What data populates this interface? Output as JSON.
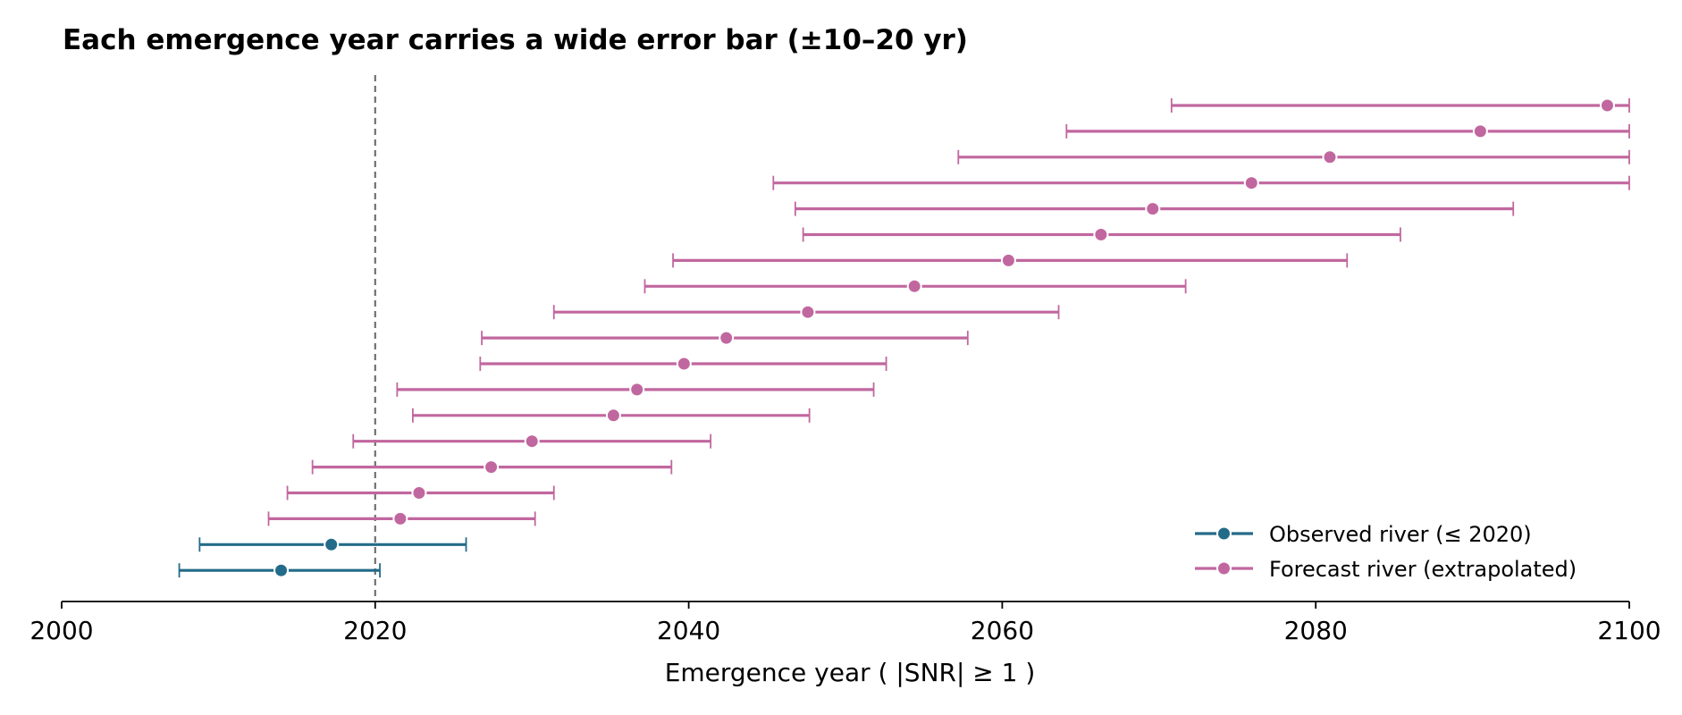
{
  "chart_data": {
    "type": "errorbar",
    "title": "Each emergence year carries a wide error bar (±10–20 yr)",
    "xlabel": "Emergence year  ( |SNR| ≥ 1 )",
    "ylabel": "",
    "xlim": [
      2000,
      2100
    ],
    "xticks": [
      2000,
      2020,
      2040,
      2060,
      2080,
      2100
    ],
    "xtick_labels": [
      "2000",
      "2020",
      "2040",
      "2060",
      "2080",
      "2100"
    ],
    "reference_line": {
      "x": 2020,
      "style": "dashed",
      "color": "#707070"
    },
    "grid": false,
    "legend": {
      "placement": "lower-right"
    },
    "series": [
      {
        "name": "Observed river (≤ 2020)",
        "color": "#236b89",
        "points": [
          {
            "year": 2014.0,
            "lower": 2007.5,
            "upper": 2020.3
          },
          {
            "year": 2017.2,
            "lower": 2008.8,
            "upper": 2025.8
          }
        ]
      },
      {
        "name": "Forecast river (extrapolated)",
        "color": "#c1679f",
        "points": [
          {
            "year": 2021.6,
            "lower": 2013.2,
            "upper": 2030.2
          },
          {
            "year": 2022.8,
            "lower": 2014.4,
            "upper": 2031.4
          },
          {
            "year": 2027.4,
            "lower": 2016.0,
            "upper": 2038.9
          },
          {
            "year": 2030.0,
            "lower": 2018.6,
            "upper": 2041.4
          },
          {
            "year": 2035.2,
            "lower": 2022.4,
            "upper": 2047.7
          },
          {
            "year": 2036.7,
            "lower": 2021.4,
            "upper": 2051.8
          },
          {
            "year": 2039.7,
            "lower": 2026.7,
            "upper": 2052.6
          },
          {
            "year": 2042.4,
            "lower": 2026.8,
            "upper": 2057.8
          },
          {
            "year": 2047.6,
            "lower": 2031.4,
            "upper": 2063.6
          },
          {
            "year": 2054.4,
            "lower": 2037.2,
            "upper": 2071.7
          },
          {
            "year": 2060.4,
            "lower": 2039.0,
            "upper": 2082.0
          },
          {
            "year": 2066.3,
            "lower": 2047.3,
            "upper": 2085.4
          },
          {
            "year": 2069.6,
            "lower": 2046.8,
            "upper": 2092.6
          },
          {
            "year": 2075.9,
            "lower": 2045.4,
            "upper": 2100.0
          },
          {
            "year": 2080.9,
            "lower": 2057.2,
            "upper": 2100.0
          },
          {
            "year": 2090.5,
            "lower": 2064.1,
            "upper": 2100.0
          },
          {
            "year": 2098.6,
            "lower": 2070.8,
            "upper": 2100.0
          }
        ]
      }
    ]
  }
}
